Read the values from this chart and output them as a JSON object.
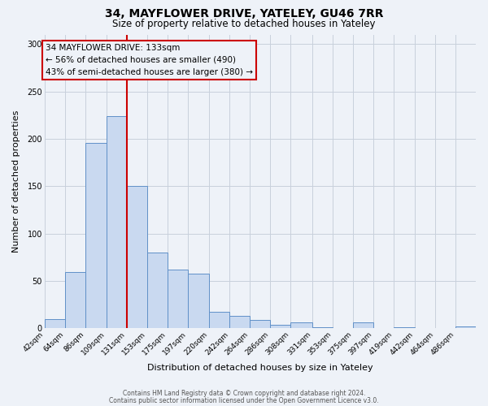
{
  "title": "34, MAYFLOWER DRIVE, YATELEY, GU46 7RR",
  "subtitle": "Size of property relative to detached houses in Yateley",
  "xlabel": "Distribution of detached houses by size in Yateley",
  "ylabel": "Number of detached properties",
  "bar_labels": [
    "42sqm",
    "64sqm",
    "86sqm",
    "109sqm",
    "131sqm",
    "153sqm",
    "175sqm",
    "197sqm",
    "220sqm",
    "242sqm",
    "264sqm",
    "286sqm",
    "308sqm",
    "331sqm",
    "353sqm",
    "375sqm",
    "397sqm",
    "419sqm",
    "442sqm",
    "464sqm",
    "486sqm"
  ],
  "bar_values": [
    10,
    59,
    196,
    224,
    150,
    80,
    62,
    58,
    17,
    13,
    9,
    4,
    6,
    1,
    0,
    6,
    0,
    1,
    0,
    0,
    2
  ],
  "bar_color_fill": "#c9d9f0",
  "bar_color_edge": "#6090c8",
  "property_line_x": 131,
  "property_line_color": "#cc0000",
  "annotation_title": "34 MAYFLOWER DRIVE: 133sqm",
  "annotation_line1": "← 56% of detached houses are smaller (490)",
  "annotation_line2": "43% of semi-detached houses are larger (380) →",
  "annotation_box_color": "#cc0000",
  "ylim": [
    0,
    310
  ],
  "bin_edges": [
    42,
    64,
    86,
    109,
    131,
    153,
    175,
    197,
    220,
    242,
    264,
    286,
    308,
    331,
    353,
    375,
    397,
    419,
    442,
    464,
    486,
    508
  ],
  "footer_line1": "Contains HM Land Registry data © Crown copyright and database right 2024.",
  "footer_line2": "Contains public sector information licensed under the Open Government Licence v3.0.",
  "background_color": "#eef2f8",
  "grid_color": "#c8d0dc",
  "title_fontsize": 10,
  "subtitle_fontsize": 8.5,
  "axis_label_fontsize": 8,
  "tick_fontsize": 6.5,
  "footer_fontsize": 5.5,
  "annotation_fontsize": 7.5
}
